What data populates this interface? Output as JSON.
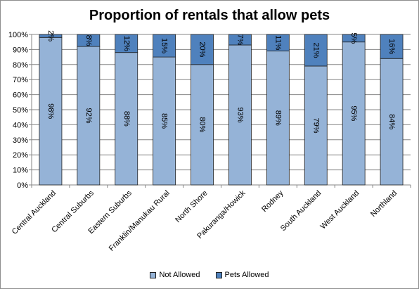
{
  "chart_data": {
    "type": "bar",
    "stacked": true,
    "title": "Proportion of rentals  that allow pets",
    "categories": [
      "Central Auckland",
      "Central Suburbs",
      "Eastern Suburbs",
      "Franklin/Manukau Rural",
      "North Shore",
      "Pakuranga/Howick",
      "Rodney",
      "South Auckland",
      "West Auckland",
      "Northland"
    ],
    "series": [
      {
        "name": "Not Allowed",
        "color": "#95b3d7",
        "values": [
          98,
          92,
          88,
          85,
          80,
          93,
          89,
          79,
          95,
          84
        ],
        "labels": [
          "98%",
          "92%",
          "88%",
          "85%",
          "80%",
          "93%",
          "89%",
          "79%",
          "95%",
          "84%"
        ]
      },
      {
        "name": "Pets Allowed",
        "color": "#4f81bd",
        "values": [
          2,
          8,
          12,
          15,
          20,
          7,
          11,
          21,
          5,
          16
        ],
        "labels": [
          "2%",
          "8%",
          "12%",
          "15%",
          "20%",
          "7%",
          "11%",
          "21%",
          "5%",
          "16%"
        ]
      }
    ],
    "y_ticks": [
      "0%",
      "10%",
      "20%",
      "30%",
      "40%",
      "50%",
      "60%",
      "70%",
      "80%",
      "90%",
      "100%"
    ],
    "ylim": [
      0,
      100
    ],
    "grid": true,
    "legend_position": "bottom"
  }
}
